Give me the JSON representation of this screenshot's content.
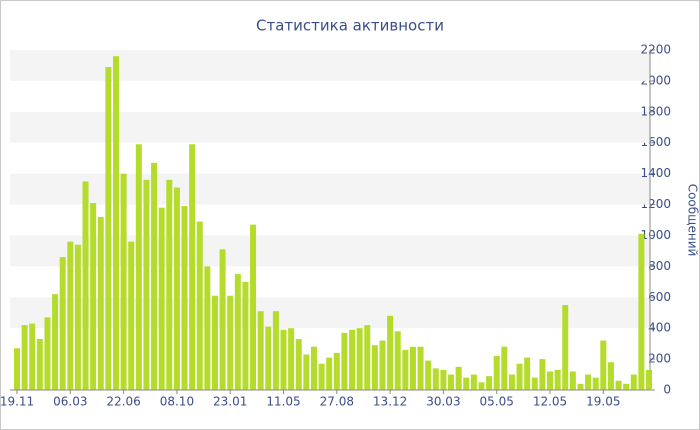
{
  "chart_data": {
    "type": "bar",
    "title": "Статистика активности",
    "y_label": "Сообщений",
    "categories": [
      "19.11",
      null,
      null,
      null,
      null,
      null,
      null,
      "06.03",
      null,
      null,
      null,
      null,
      null,
      null,
      "22.06",
      null,
      null,
      null,
      null,
      null,
      null,
      "08.10",
      null,
      null,
      null,
      null,
      null,
      null,
      "23.01",
      null,
      null,
      null,
      null,
      null,
      null,
      "11.05",
      null,
      null,
      null,
      null,
      null,
      null,
      "27.08",
      null,
      null,
      null,
      null,
      null,
      null,
      "13.12",
      null,
      null,
      null,
      null,
      null,
      null,
      "30.03",
      null,
      null,
      null,
      null,
      null,
      null,
      "05.05",
      null,
      null,
      null,
      null,
      null,
      null,
      "12.05",
      null,
      null,
      null,
      null,
      null,
      null,
      "19.05",
      null,
      null,
      null,
      null,
      null,
      null
    ],
    "values": [
      270,
      420,
      430,
      330,
      470,
      620,
      860,
      960,
      940,
      1350,
      1210,
      1120,
      2090,
      2160,
      1400,
      960,
      1590,
      1360,
      1470,
      1180,
      1360,
      1310,
      1190,
      1590,
      1090,
      800,
      610,
      910,
      610,
      750,
      700,
      1070,
      510,
      410,
      510,
      390,
      400,
      330,
      230,
      280,
      170,
      210,
      240,
      370,
      390,
      400,
      420,
      290,
      320,
      480,
      380,
      260,
      280,
      280,
      190,
      140,
      130,
      100,
      150,
      80,
      100,
      50,
      90,
      220,
      280,
      100,
      170,
      210,
      80,
      200,
      120,
      130,
      550,
      120,
      40,
      100,
      80,
      320,
      180,
      60,
      40,
      100,
      1010,
      130
    ],
    "color": "#b5dc2c",
    "ylim": [
      0,
      2200
    ],
    "yticks": [
      0,
      200,
      400,
      600,
      800,
      1000,
      1200,
      1400,
      1600,
      1800,
      2000,
      2200
    ],
    "grid": "bands"
  }
}
